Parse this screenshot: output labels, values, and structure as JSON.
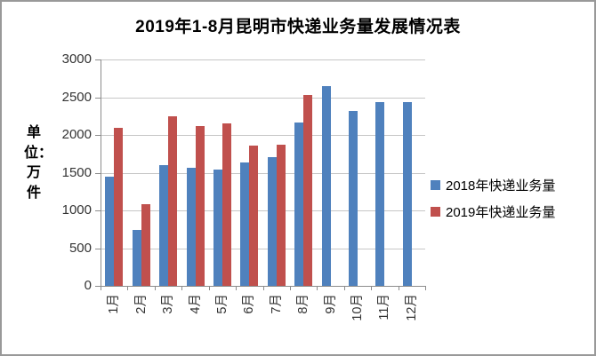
{
  "title": "2019年1-8月昆明市快递业务量发展情况表",
  "unit_label": "单位：万件",
  "chart_data": {
    "type": "bar",
    "title": "2019年1-8月昆明市快递业务量发展情况表",
    "ylabel": "单位：万件",
    "xlabel": "",
    "categories": [
      "1月",
      "2月",
      "3月",
      "4月",
      "5月",
      "6月",
      "7月",
      "8月",
      "9月",
      "10月",
      "11月",
      "12月"
    ],
    "series": [
      {
        "name": "2018年快递业务量",
        "color": "#4F81BD",
        "values": [
          1450,
          740,
          1600,
          1560,
          1540,
          1640,
          1710,
          2160,
          2650,
          2320,
          2440,
          2440
        ]
      },
      {
        "name": "2019年快递业务量",
        "color": "#C0504D",
        "values": [
          2100,
          1080,
          2250,
          2120,
          2150,
          1860,
          1870,
          2530,
          null,
          null,
          null,
          null
        ]
      }
    ],
    "ylim": [
      0,
      3000
    ],
    "yticks": [
      0,
      500,
      1000,
      1500,
      2000,
      2500,
      3000
    ],
    "grid": true,
    "legend_position": "right"
  },
  "legend": {
    "items": [
      {
        "label": "2018年快递业务量",
        "color": "#4F81BD"
      },
      {
        "label": "2019年快递业务量",
        "color": "#C0504D"
      }
    ]
  },
  "colors": {
    "blue_series": "#4F81BD",
    "red_series": "#C0504D",
    "gridline": "#C6C6C6",
    "axis": "#8C8C8C",
    "frame_border": "#999999"
  }
}
